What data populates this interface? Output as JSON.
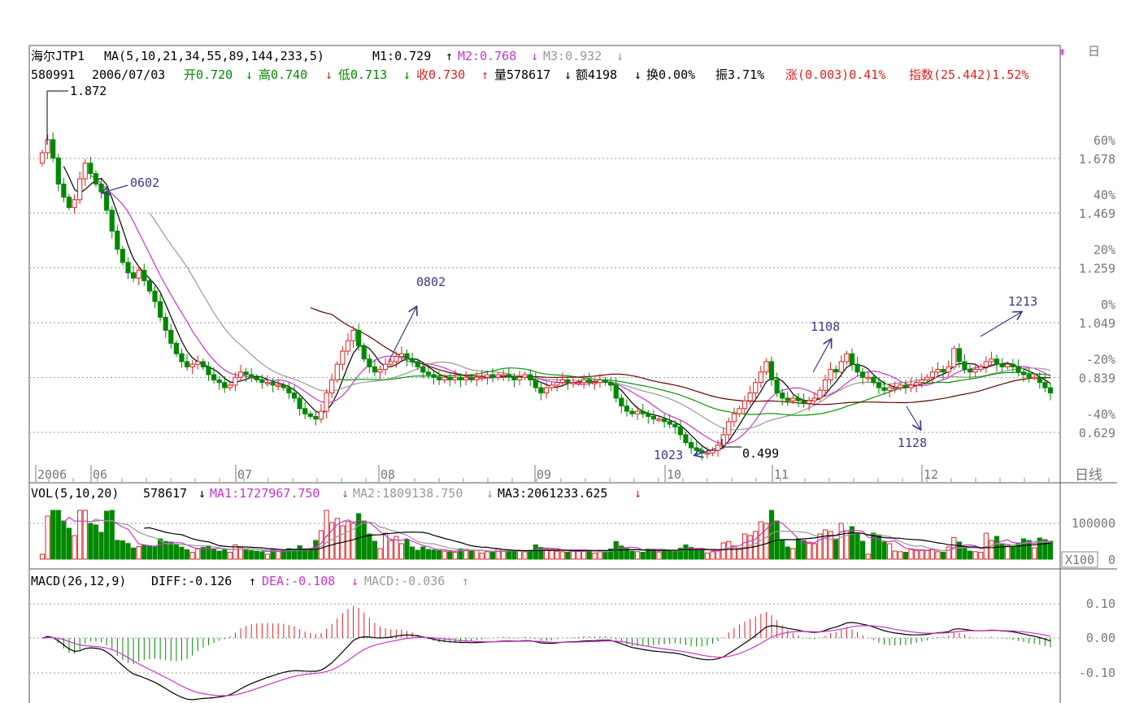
{
  "chart_data": {
    "type": "candlestick",
    "title": {
      "name": "海尔JTP1",
      "ma": "MA(5,10,21,34,55,89,144,233,5)",
      "m1": "M1:0.729",
      "m2": "M2:0.768",
      "m3": "M3:0.932"
    },
    "info": {
      "code": "580991",
      "date": "2006/07/03",
      "open": "开0.720",
      "high": "高0.740",
      "low": "低0.713",
      "close": "收0.730",
      "vol": "量578617",
      "amount": "额4198",
      "turnover": "换0.00%",
      "amplitude": "振3.71%",
      "change": "涨(0.003)0.41%",
      "index": "指数(25.442)1.52%"
    },
    "y_axis": {
      "ticks": [
        {
          "pct": "60%",
          "price": "1.678"
        },
        {
          "pct": "40%",
          "price": "1.469"
        },
        {
          "pct": "20%",
          "price": "1.259"
        },
        {
          "pct": "0%",
          "price": "1.049"
        },
        {
          "pct": "-20%",
          "price": "0.839"
        },
        {
          "pct": "-40%",
          "price": "0.629"
        }
      ],
      "range": [
        0.45,
        1.95
      ]
    },
    "x_axis": {
      "labels": [
        "2006",
        "06",
        "07",
        "08",
        "09",
        "10",
        "11",
        "12"
      ],
      "period": "日线"
    },
    "annotations": {
      "high": "1.872",
      "low": "0.499",
      "marks": [
        "0602",
        "0802",
        "1023",
        "1108",
        "1128",
        "1213"
      ]
    },
    "volume": {
      "header": "VOL(5,10,20)",
      "value": "578617",
      "ma1": "MA1:1727967.750",
      "ma2": "MA2:1809138.750",
      "ma3": "MA3:2061233.625",
      "tick": "100000",
      "zero": "0",
      "unit": "X100"
    },
    "macd": {
      "header": "MACD(26,12,9)",
      "diff": "DIFF:-0.126",
      "dea": "DEA:-0.108",
      "macd": "MACD:-0.036",
      "ticks": [
        "0.10",
        "0.00",
        "-0.10"
      ]
    },
    "close_series": [
      1.7,
      1.75,
      1.68,
      1.58,
      1.53,
      1.49,
      1.52,
      1.6,
      1.66,
      1.62,
      1.58,
      1.55,
      1.48,
      1.4,
      1.33,
      1.28,
      1.24,
      1.22,
      1.25,
      1.21,
      1.17,
      1.13,
      1.07,
      1.02,
      0.97,
      0.93,
      0.9,
      0.88,
      0.89,
      0.9,
      0.88,
      0.85,
      0.83,
      0.82,
      0.8,
      0.81,
      0.84,
      0.86,
      0.85,
      0.84,
      0.83,
      0.82,
      0.82,
      0.81,
      0.81,
      0.8,
      0.78,
      0.76,
      0.72,
      0.7,
      0.69,
      0.68,
      0.71,
      0.78,
      0.83,
      0.89,
      0.94,
      0.98,
      1.02,
      0.96,
      0.91,
      0.88,
      0.86,
      0.87,
      0.89,
      0.9,
      0.92,
      0.93,
      0.91,
      0.9,
      0.88,
      0.86,
      0.85,
      0.84,
      0.83,
      0.84,
      0.83,
      0.84,
      0.83,
      0.84,
      0.83,
      0.84,
      0.84,
      0.85,
      0.84,
      0.85,
      0.85,
      0.84,
      0.83,
      0.84,
      0.85,
      0.83,
      0.8,
      0.78,
      0.8,
      0.81,
      0.82,
      0.83,
      0.82,
      0.82,
      0.82,
      0.83,
      0.82,
      0.82,
      0.83,
      0.82,
      0.81,
      0.76,
      0.73,
      0.71,
      0.7,
      0.71,
      0.7,
      0.69,
      0.68,
      0.68,
      0.67,
      0.66,
      0.65,
      0.62,
      0.59,
      0.57,
      0.56,
      0.55,
      0.55,
      0.56,
      0.58,
      0.62,
      0.67,
      0.7,
      0.72,
      0.75,
      0.78,
      0.82,
      0.86,
      0.9,
      0.83,
      0.78,
      0.76,
      0.75,
      0.76,
      0.75,
      0.74,
      0.75,
      0.76,
      0.79,
      0.83,
      0.87,
      0.86,
      0.9,
      0.93,
      0.89,
      0.86,
      0.84,
      0.84,
      0.82,
      0.8,
      0.79,
      0.8,
      0.8,
      0.81,
      0.8,
      0.81,
      0.82,
      0.83,
      0.84,
      0.86,
      0.87,
      0.86,
      0.88,
      0.95,
      0.9,
      0.87,
      0.86,
      0.87,
      0.88,
      0.9,
      0.91,
      0.89,
      0.88,
      0.89,
      0.88,
      0.86,
      0.85,
      0.84,
      0.84,
      0.82,
      0.8,
      0.78
    ],
    "ma_colors": {
      "ma5": "#000000",
      "ma10": "#cc33cc",
      "ma21": "#999999",
      "ma34": "#009900",
      "ma55": "#660000"
    },
    "colors": {
      "up": "#e02020",
      "down": "#008800",
      "grid": "#999999",
      "text": "#000000"
    }
  }
}
